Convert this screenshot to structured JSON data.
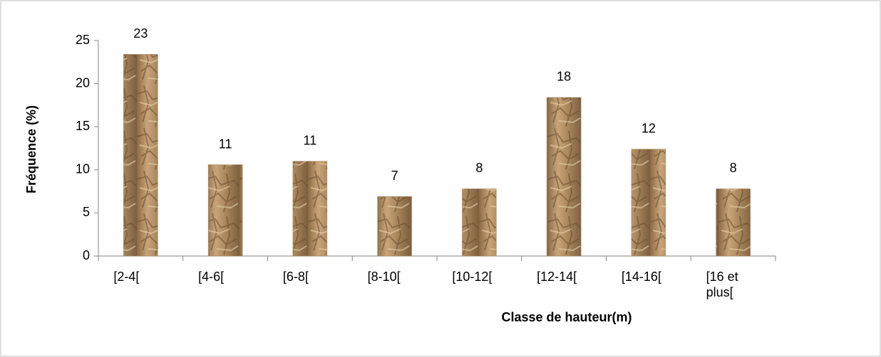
{
  "chart_data": {
    "type": "bar",
    "x_label": "Classe de hauteur(m)",
    "y_label": "Fréquence (%)",
    "categories": [
      "[2-4[",
      "[4-6[",
      "[6-8[",
      "[8-10[",
      "[10-12[",
      "[12-14[",
      "[14-16[",
      "[16 et plus["
    ],
    "values": [
      23.4,
      10.6,
      11.0,
      6.9,
      7.8,
      18.4,
      12.4,
      7.8
    ],
    "value_labels": [
      "23",
      "11",
      "11",
      "7",
      "8",
      "18",
      "12",
      "8"
    ],
    "color": "#a9875c",
    "ylim": [
      0,
      25
    ],
    "yticks": [
      0,
      5,
      10,
      15,
      20,
      25
    ],
    "grid": false
  }
}
